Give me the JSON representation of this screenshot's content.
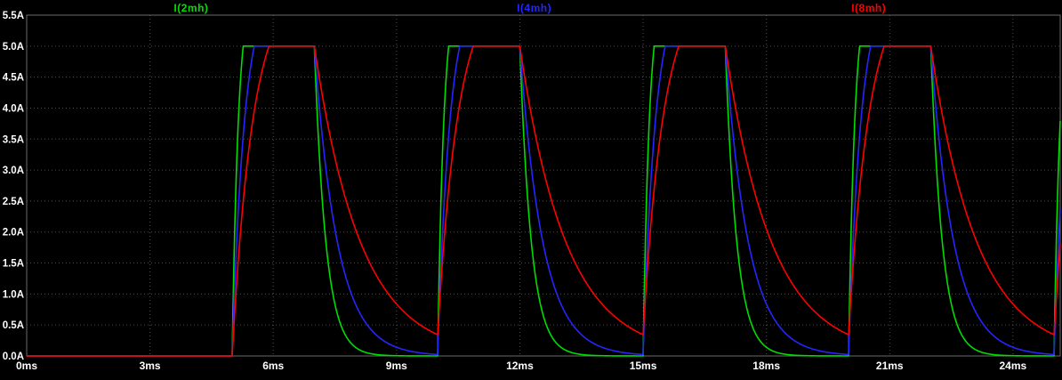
{
  "chart_data": {
    "type": "line",
    "title": "",
    "x_unit": "ms",
    "y_unit": "A",
    "xlim": [
      0,
      25.15
    ],
    "ylim": [
      0,
      5.5
    ],
    "x_ticks": [
      0,
      3,
      6,
      9,
      12,
      15,
      18,
      21,
      24
    ],
    "x_tick_labels": [
      "0ms",
      "3ms",
      "6ms",
      "9ms",
      "12ms",
      "15ms",
      "18ms",
      "21ms",
      "24ms"
    ],
    "y_ticks": [
      5.5,
      5.0,
      4.5,
      4.0,
      3.5,
      3.0,
      2.5,
      2.0,
      1.5,
      1.0,
      0.5,
      0.0
    ],
    "y_tick_labels": [
      "5.5A",
      "5.0A",
      "4.5A",
      "4.0A",
      "3.5A",
      "3.0A",
      "2.5A",
      "2.0A",
      "1.5A",
      "1.0A",
      "0.5A",
      "0.0A"
    ],
    "grid": true,
    "legend_position": "top",
    "colors": {
      "background": "#000000",
      "grid": "#4d4d4d",
      "frame": "#6a6a6a",
      "tick_text": "#ffffff"
    },
    "series": [
      {
        "name": "I(2mh)",
        "color": "#00dd00",
        "tau_rise_ms": 0.15,
        "tau_fall_ms": 0.28
      },
      {
        "name": "I(4mh)",
        "color": "#2525ff",
        "tau_rise_ms": 0.3,
        "tau_fall_ms": 0.56
      },
      {
        "name": "I(8mh)",
        "color": "#ff0000",
        "tau_rise_ms": 0.5,
        "tau_fall_ms": 1.12
      }
    ],
    "waveform": {
      "description": "Periodic pulsed inductor currents: zero until first pulse, exponential rise clamped at peak, exponential decay toward zero between pulses",
      "pulse_start_ms": 5,
      "period_ms": 5,
      "on_time_ms": 2,
      "peak_A": 5,
      "rise_asymptote_A": 6,
      "num_pulses": 4,
      "t_end_ms": 25.15
    }
  }
}
